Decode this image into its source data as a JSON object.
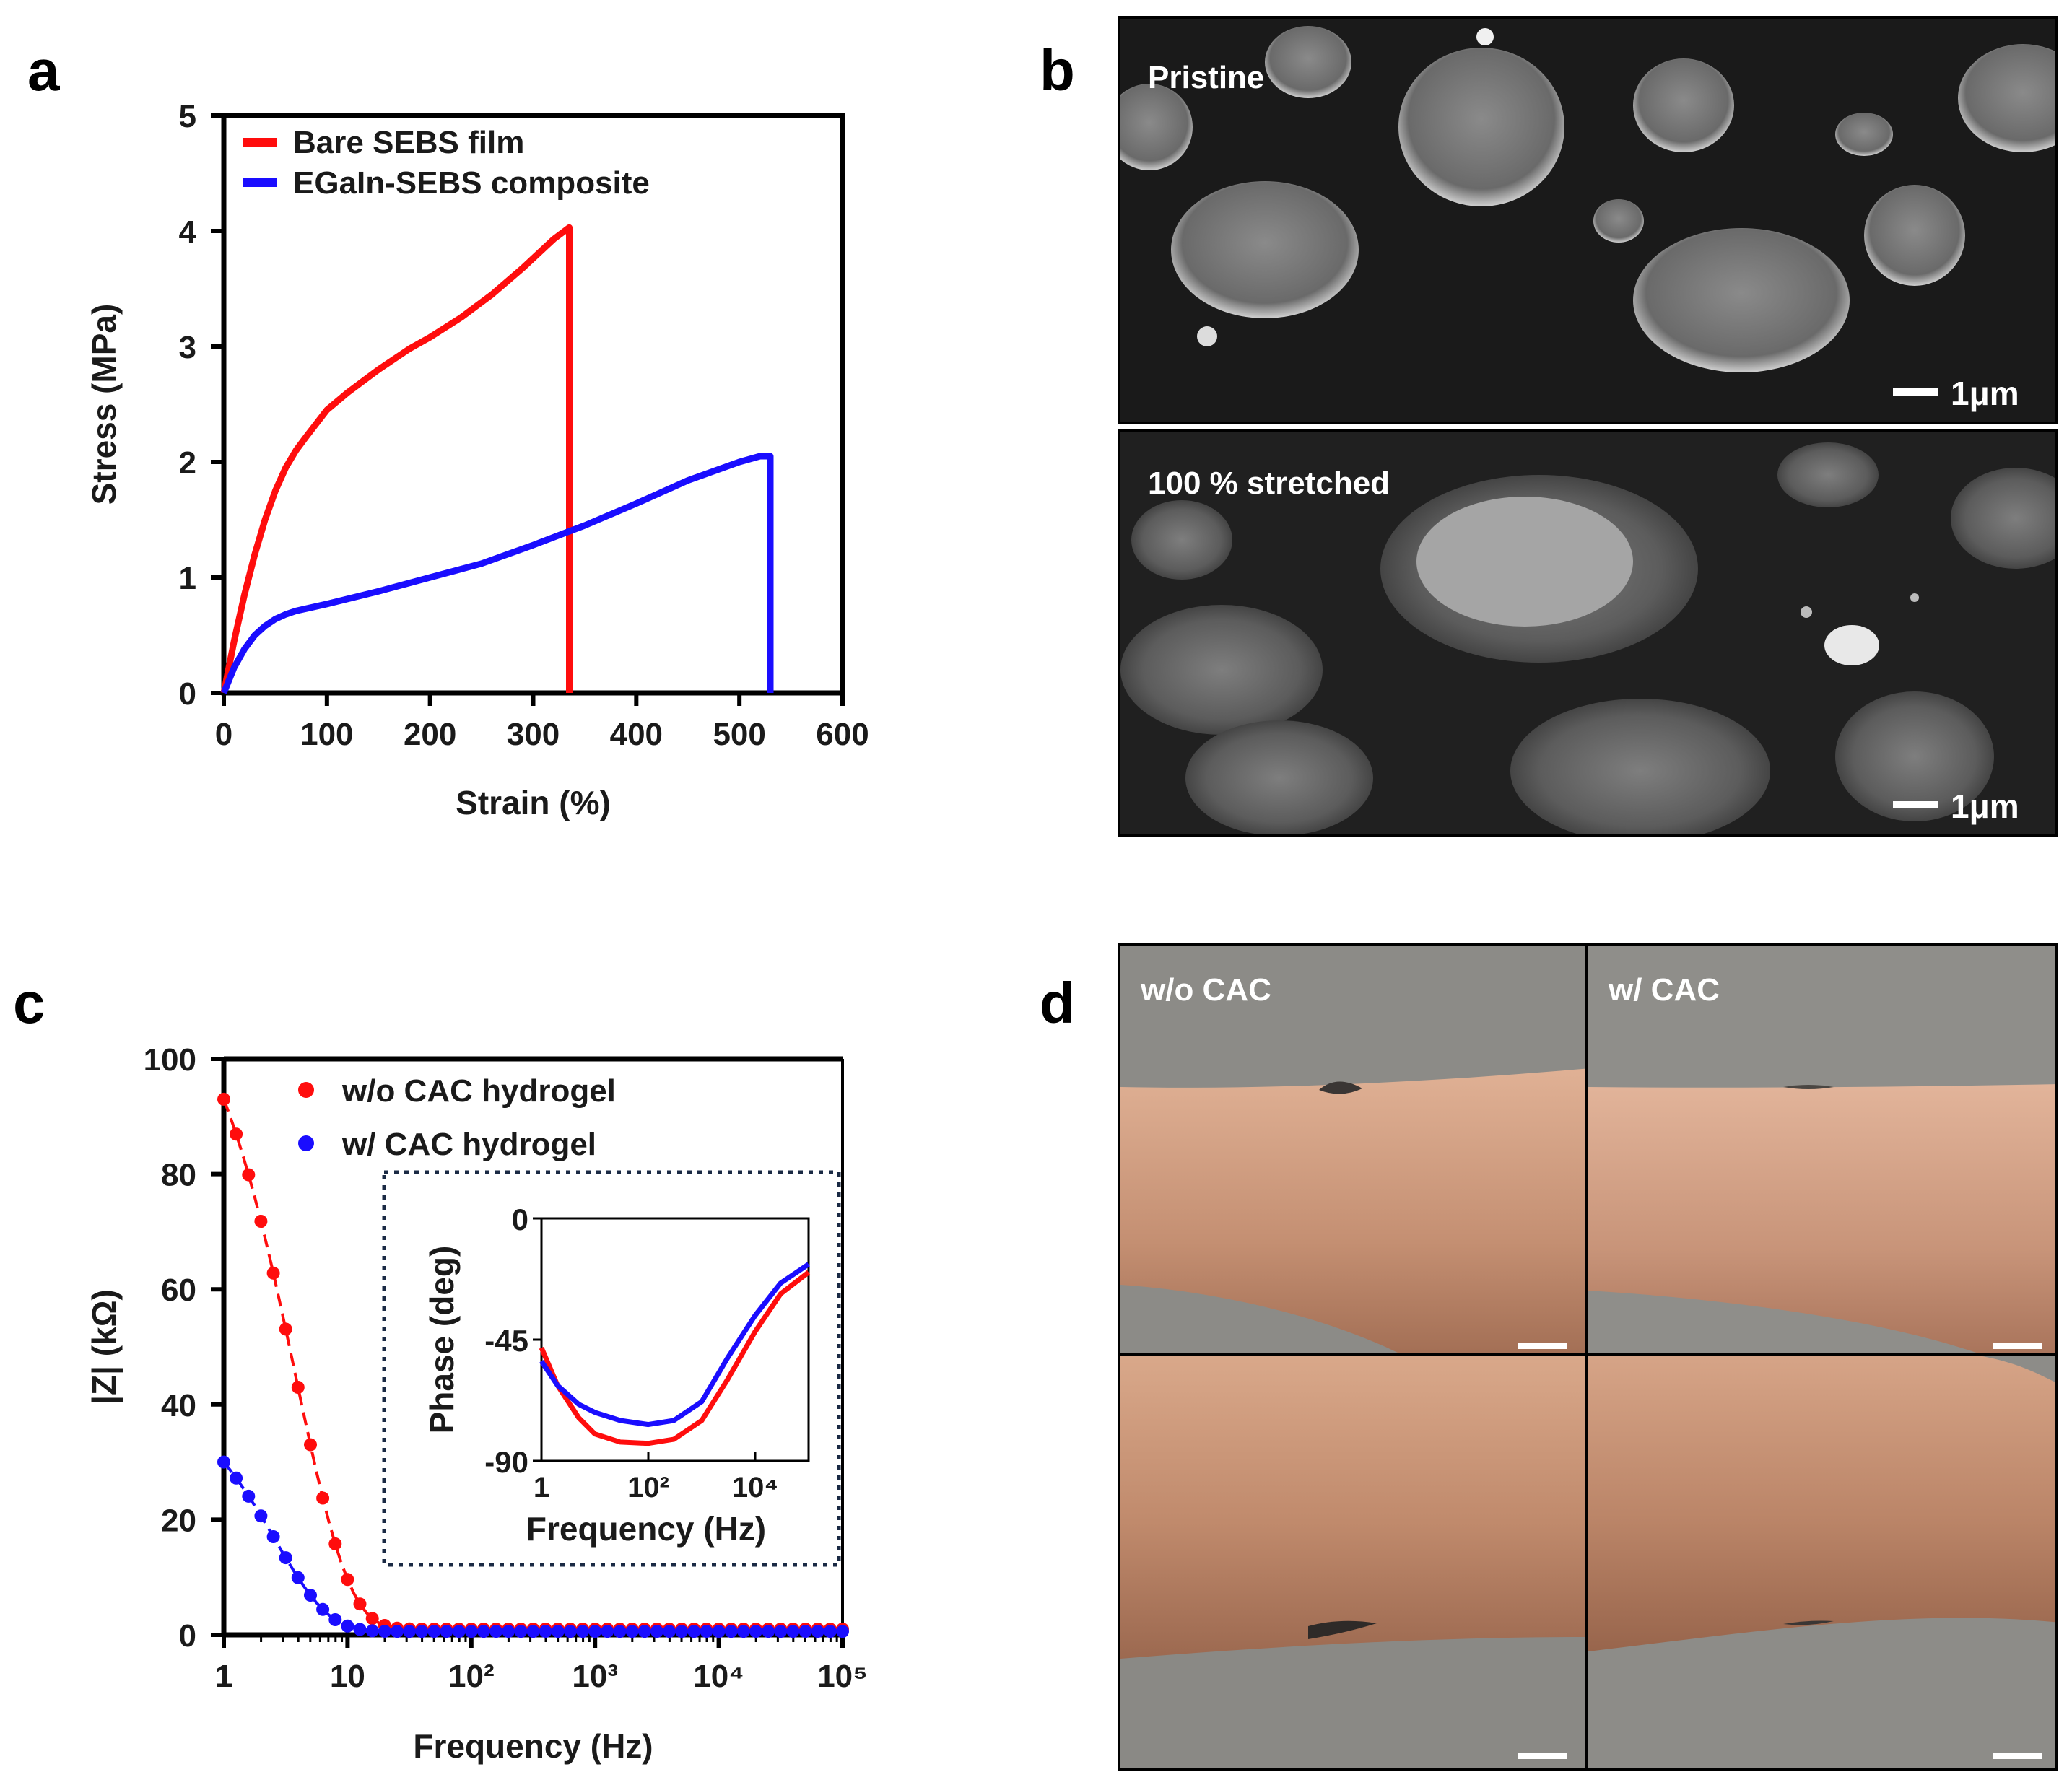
{
  "panels": {
    "a": {
      "letter": "a"
    },
    "b": {
      "letter": "b",
      "top_label": "Pristine",
      "bottom_label": "100 % stretched",
      "scale_label": "1μm"
    },
    "c": {
      "letter": "c"
    },
    "d": {
      "letter": "d",
      "left_label": "w/o CAC",
      "right_label": "w/ CAC"
    }
  },
  "colors": {
    "red": "#ff0d0d",
    "blue": "#1a0dff",
    "axis": "#000000"
  },
  "chart_data": [
    {
      "id": "a",
      "type": "line",
      "xlabel": "Strain (%)",
      "ylabel": "Stress (MPa)",
      "xlim": [
        0,
        600
      ],
      "ylim": [
        0,
        5
      ],
      "xticks": [
        0,
        100,
        200,
        300,
        400,
        500,
        600
      ],
      "yticks": [
        0,
        1,
        2,
        3,
        4,
        5
      ],
      "legend_position": "top-left",
      "series": [
        {
          "name": "Bare SEBS film",
          "color": "#ff0d0d",
          "x": [
            0,
            10,
            20,
            30,
            40,
            50,
            60,
            70,
            80,
            100,
            120,
            150,
            180,
            200,
            230,
            260,
            290,
            320,
            335,
            335
          ],
          "y": [
            0,
            0.45,
            0.85,
            1.2,
            1.5,
            1.75,
            1.95,
            2.1,
            2.22,
            2.45,
            2.6,
            2.8,
            2.98,
            3.08,
            3.25,
            3.45,
            3.68,
            3.93,
            4.03,
            0
          ]
        },
        {
          "name": "EGaIn-SEBS composite",
          "color": "#1a0dff",
          "x": [
            0,
            10,
            20,
            30,
            40,
            50,
            60,
            70,
            80,
            100,
            150,
            200,
            250,
            300,
            350,
            400,
            450,
            500,
            520,
            530,
            530
          ],
          "y": [
            0,
            0.22,
            0.38,
            0.5,
            0.58,
            0.64,
            0.68,
            0.71,
            0.73,
            0.77,
            0.88,
            1.0,
            1.12,
            1.28,
            1.45,
            1.64,
            1.84,
            2.0,
            2.05,
            2.05,
            0
          ]
        }
      ]
    },
    {
      "id": "c",
      "type": "scatter",
      "xscale": "log",
      "xlabel": "Frequency (Hz)",
      "ylabel": "|Z| (kΩ)",
      "xlim": [
        1,
        100000
      ],
      "ylim": [
        0,
        100
      ],
      "xtick_labels": [
        "1",
        "10",
        "10²",
        "10³",
        "10⁴",
        "10⁵"
      ],
      "yticks": [
        0,
        20,
        40,
        60,
        80,
        100
      ],
      "legend_position": "top-left",
      "series": [
        {
          "name": "w/o CAC hydrogel",
          "color": "#ff0d0d",
          "y0": 93,
          "y_inf": 1.0,
          "decay_hz": 3.8
        },
        {
          "name": "w/ CAC hydrogel",
          "color": "#1a0dff",
          "y0": 30,
          "y_inf": 0.6,
          "decay_hz": 2.6
        }
      ],
      "inset": {
        "type": "line",
        "xscale": "log",
        "xlabel": "Frequency (Hz)",
        "ylabel": "Phase (deg)",
        "xlim": [
          1,
          100000
        ],
        "ylim": [
          -90,
          0
        ],
        "yticks": [
          0,
          -45,
          -90
        ],
        "xtick_labels": [
          "1",
          "10²",
          "10⁴"
        ],
        "series": [
          {
            "color": "#ff0d0d",
            "x": [
              1,
              2,
              5,
              10,
              30,
              100,
              300,
              1000,
              3000,
              10000,
              30000,
              100000
            ],
            "y": [
              -48,
              -62,
              -74,
              -80,
              -83,
              -83.5,
              -82,
              -75,
              -60,
              -42,
              -28,
              -20
            ]
          },
          {
            "color": "#1a0dff",
            "x": [
              1,
              2,
              5,
              10,
              30,
              100,
              300,
              1000,
              3000,
              10000,
              30000,
              100000
            ],
            "y": [
              -53,
              -62,
              -69,
              -72,
              -75,
              -76.5,
              -75,
              -68,
              -52,
              -36,
              -24,
              -17
            ]
          }
        ]
      }
    }
  ]
}
